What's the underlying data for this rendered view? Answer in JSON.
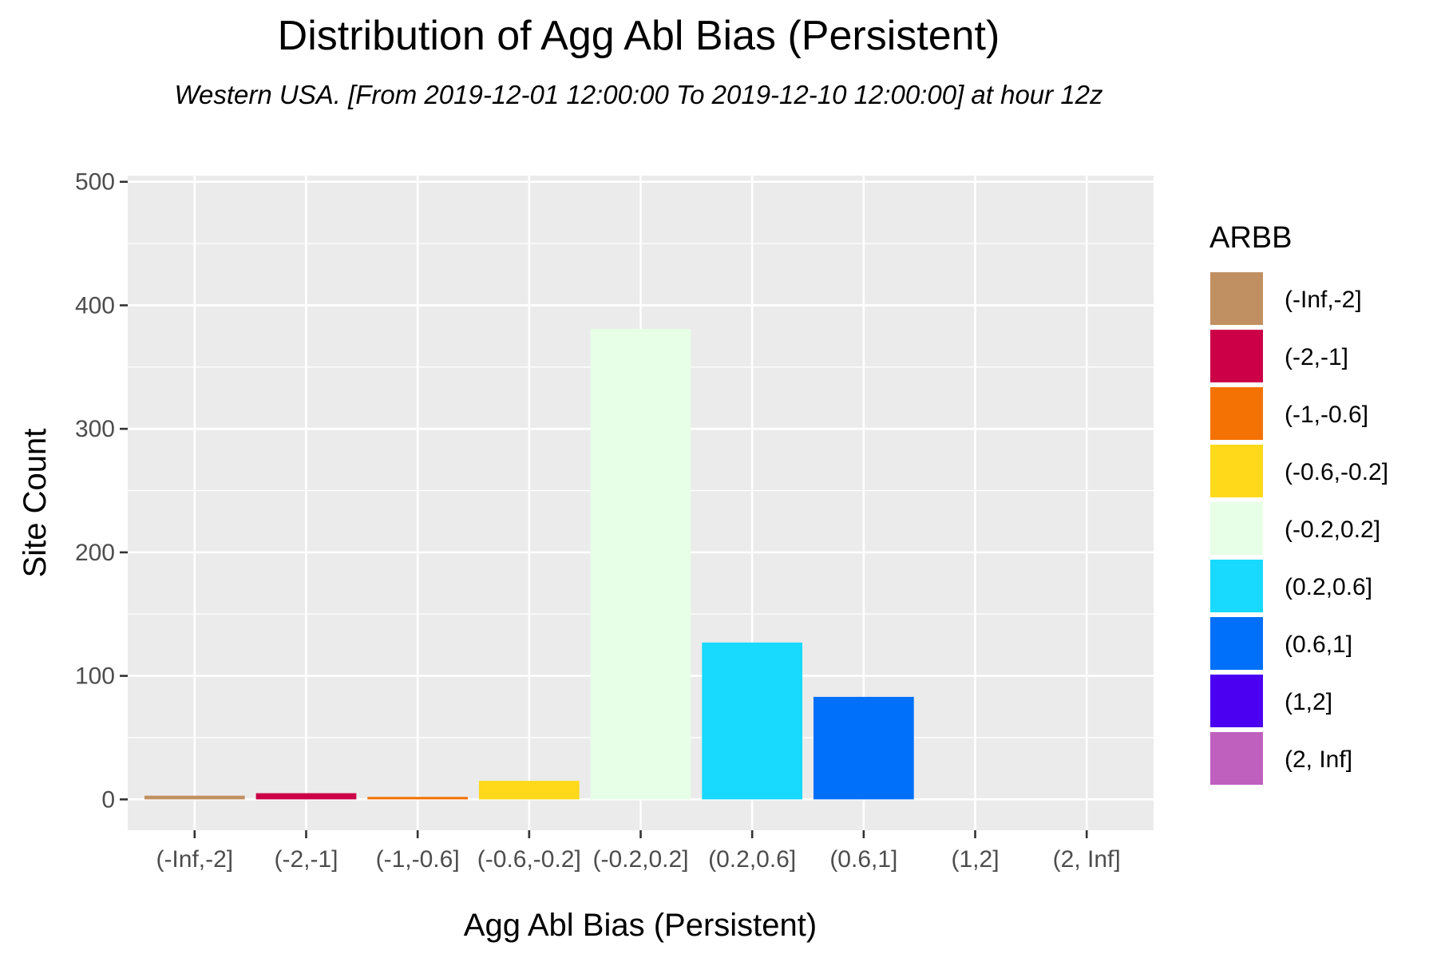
{
  "chart_data": {
    "type": "bar",
    "title": "Distribution of Agg Abl Bias (Persistent)",
    "subtitle": "Western USA.  [From 2019-12-01 12:00:00 To 2019-12-10 12:00:00] at hour 12z",
    "xlabel": "Agg Abl Bias (Persistent)",
    "ylabel": "Site Count",
    "ylim": [
      -25,
      505
    ],
    "yticks": [
      0,
      100,
      200,
      300,
      400,
      500
    ],
    "ytick_labels": [
      "0",
      "100",
      "200",
      "300",
      "400",
      "500"
    ],
    "grid": true,
    "categories": [
      "(-Inf,-2]",
      "(-2,-1]",
      "(-1,-0.6]",
      "(-0.6,-0.2]",
      "(-0.2,0.2]",
      "(0.2,0.6]",
      "(0.6,1]",
      "(1,2]",
      "(2, Inf]"
    ],
    "values": [
      3,
      5,
      2,
      15,
      381,
      127,
      83,
      0,
      0
    ],
    "colors": [
      "#C19062",
      "#CC0047",
      "#F47204",
      "#FFD91A",
      "#E6FFE6",
      "#18D9FF",
      "#0070FA",
      "#4B00F2",
      "#BF60BF"
    ],
    "legend": {
      "title": "ARBB",
      "placement": "right",
      "entries": [
        "(-Inf,-2]",
        "(-2,-1]",
        "(-1,-0.6]",
        "(-0.6,-0.2]",
        "(-0.2,0.2]",
        "(0.2,0.6]",
        "(0.6,1]",
        "(1,2]",
        "(2, Inf]"
      ]
    },
    "panel_background": "#EBEBEB",
    "grid_color": "#FFFFFF"
  }
}
